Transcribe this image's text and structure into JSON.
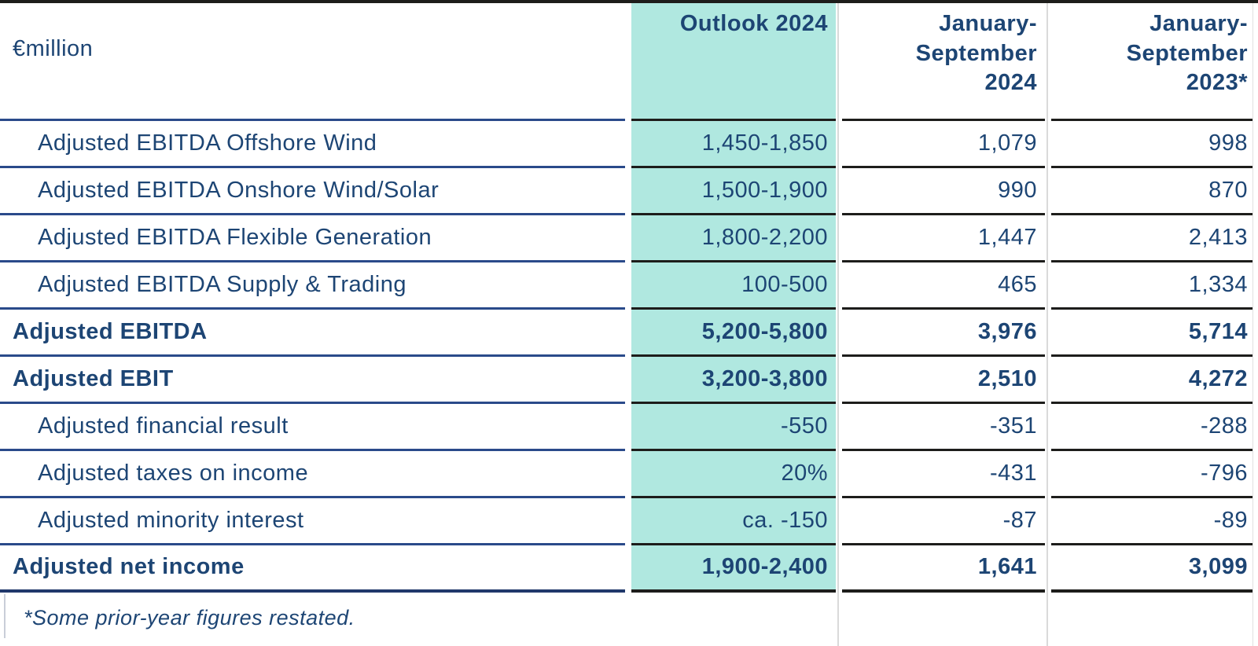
{
  "unit_label": "€million",
  "columns": {
    "outlook": {
      "label": "Outlook 2024",
      "highlight_color": "#b0e8e0"
    },
    "ytd2024": {
      "label": "January-\nSeptember\n2024"
    },
    "ytd2023": {
      "label": "January-\nSeptember\n2023*"
    }
  },
  "rows": [
    {
      "label": "Adjusted EBITDA Offshore Wind",
      "style": "indent",
      "outlook": "1,450-1,850",
      "ytd2024": "1,079",
      "ytd2023": "998"
    },
    {
      "label": "Adjusted EBITDA Onshore Wind/Solar",
      "style": "indent",
      "outlook": "1,500-1,900",
      "ytd2024": "990",
      "ytd2023": "870"
    },
    {
      "label": "Adjusted EBITDA Flexible Generation",
      "style": "indent",
      "outlook": "1,800-2,200",
      "ytd2024": "1,447",
      "ytd2023": "2,413"
    },
    {
      "label": "Adjusted EBITDA Supply & Trading",
      "style": "indent",
      "outlook": "100-500",
      "ytd2024": "465",
      "ytd2023": "1,334"
    },
    {
      "label": "Adjusted EBITDA",
      "style": "bold",
      "outlook": "5,200-5,800",
      "ytd2024": "3,976",
      "ytd2023": "5,714"
    },
    {
      "label": "Adjusted EBIT",
      "style": "bold",
      "outlook": "3,200-3,800",
      "ytd2024": "2,510",
      "ytd2023": "4,272"
    },
    {
      "label": "Adjusted financial result",
      "style": "indent",
      "outlook": "-550",
      "ytd2024": "-351",
      "ytd2023": "-288"
    },
    {
      "label": "Adjusted taxes on income",
      "style": "indent",
      "outlook": "20%",
      "ytd2024": "-431",
      "ytd2023": "-796"
    },
    {
      "label": "Adjusted minority interest",
      "style": "indent",
      "outlook": "ca. -150",
      "ytd2024": "-87",
      "ytd2023": "-89"
    },
    {
      "label": "Adjusted net income",
      "style": "bold",
      "outlook": "1,900-2,400",
      "ytd2024": "1,641",
      "ytd2023": "3,099"
    }
  ],
  "footnote": "*Some prior-year figures restated.",
  "colors": {
    "text_navy": "#1d4574",
    "label_rule_navy": "#2a4a8a",
    "value_rule_dark": "#1d1d1b",
    "outlook_highlight": "#b0e8e0",
    "column_divider_gray": "#dadada"
  }
}
